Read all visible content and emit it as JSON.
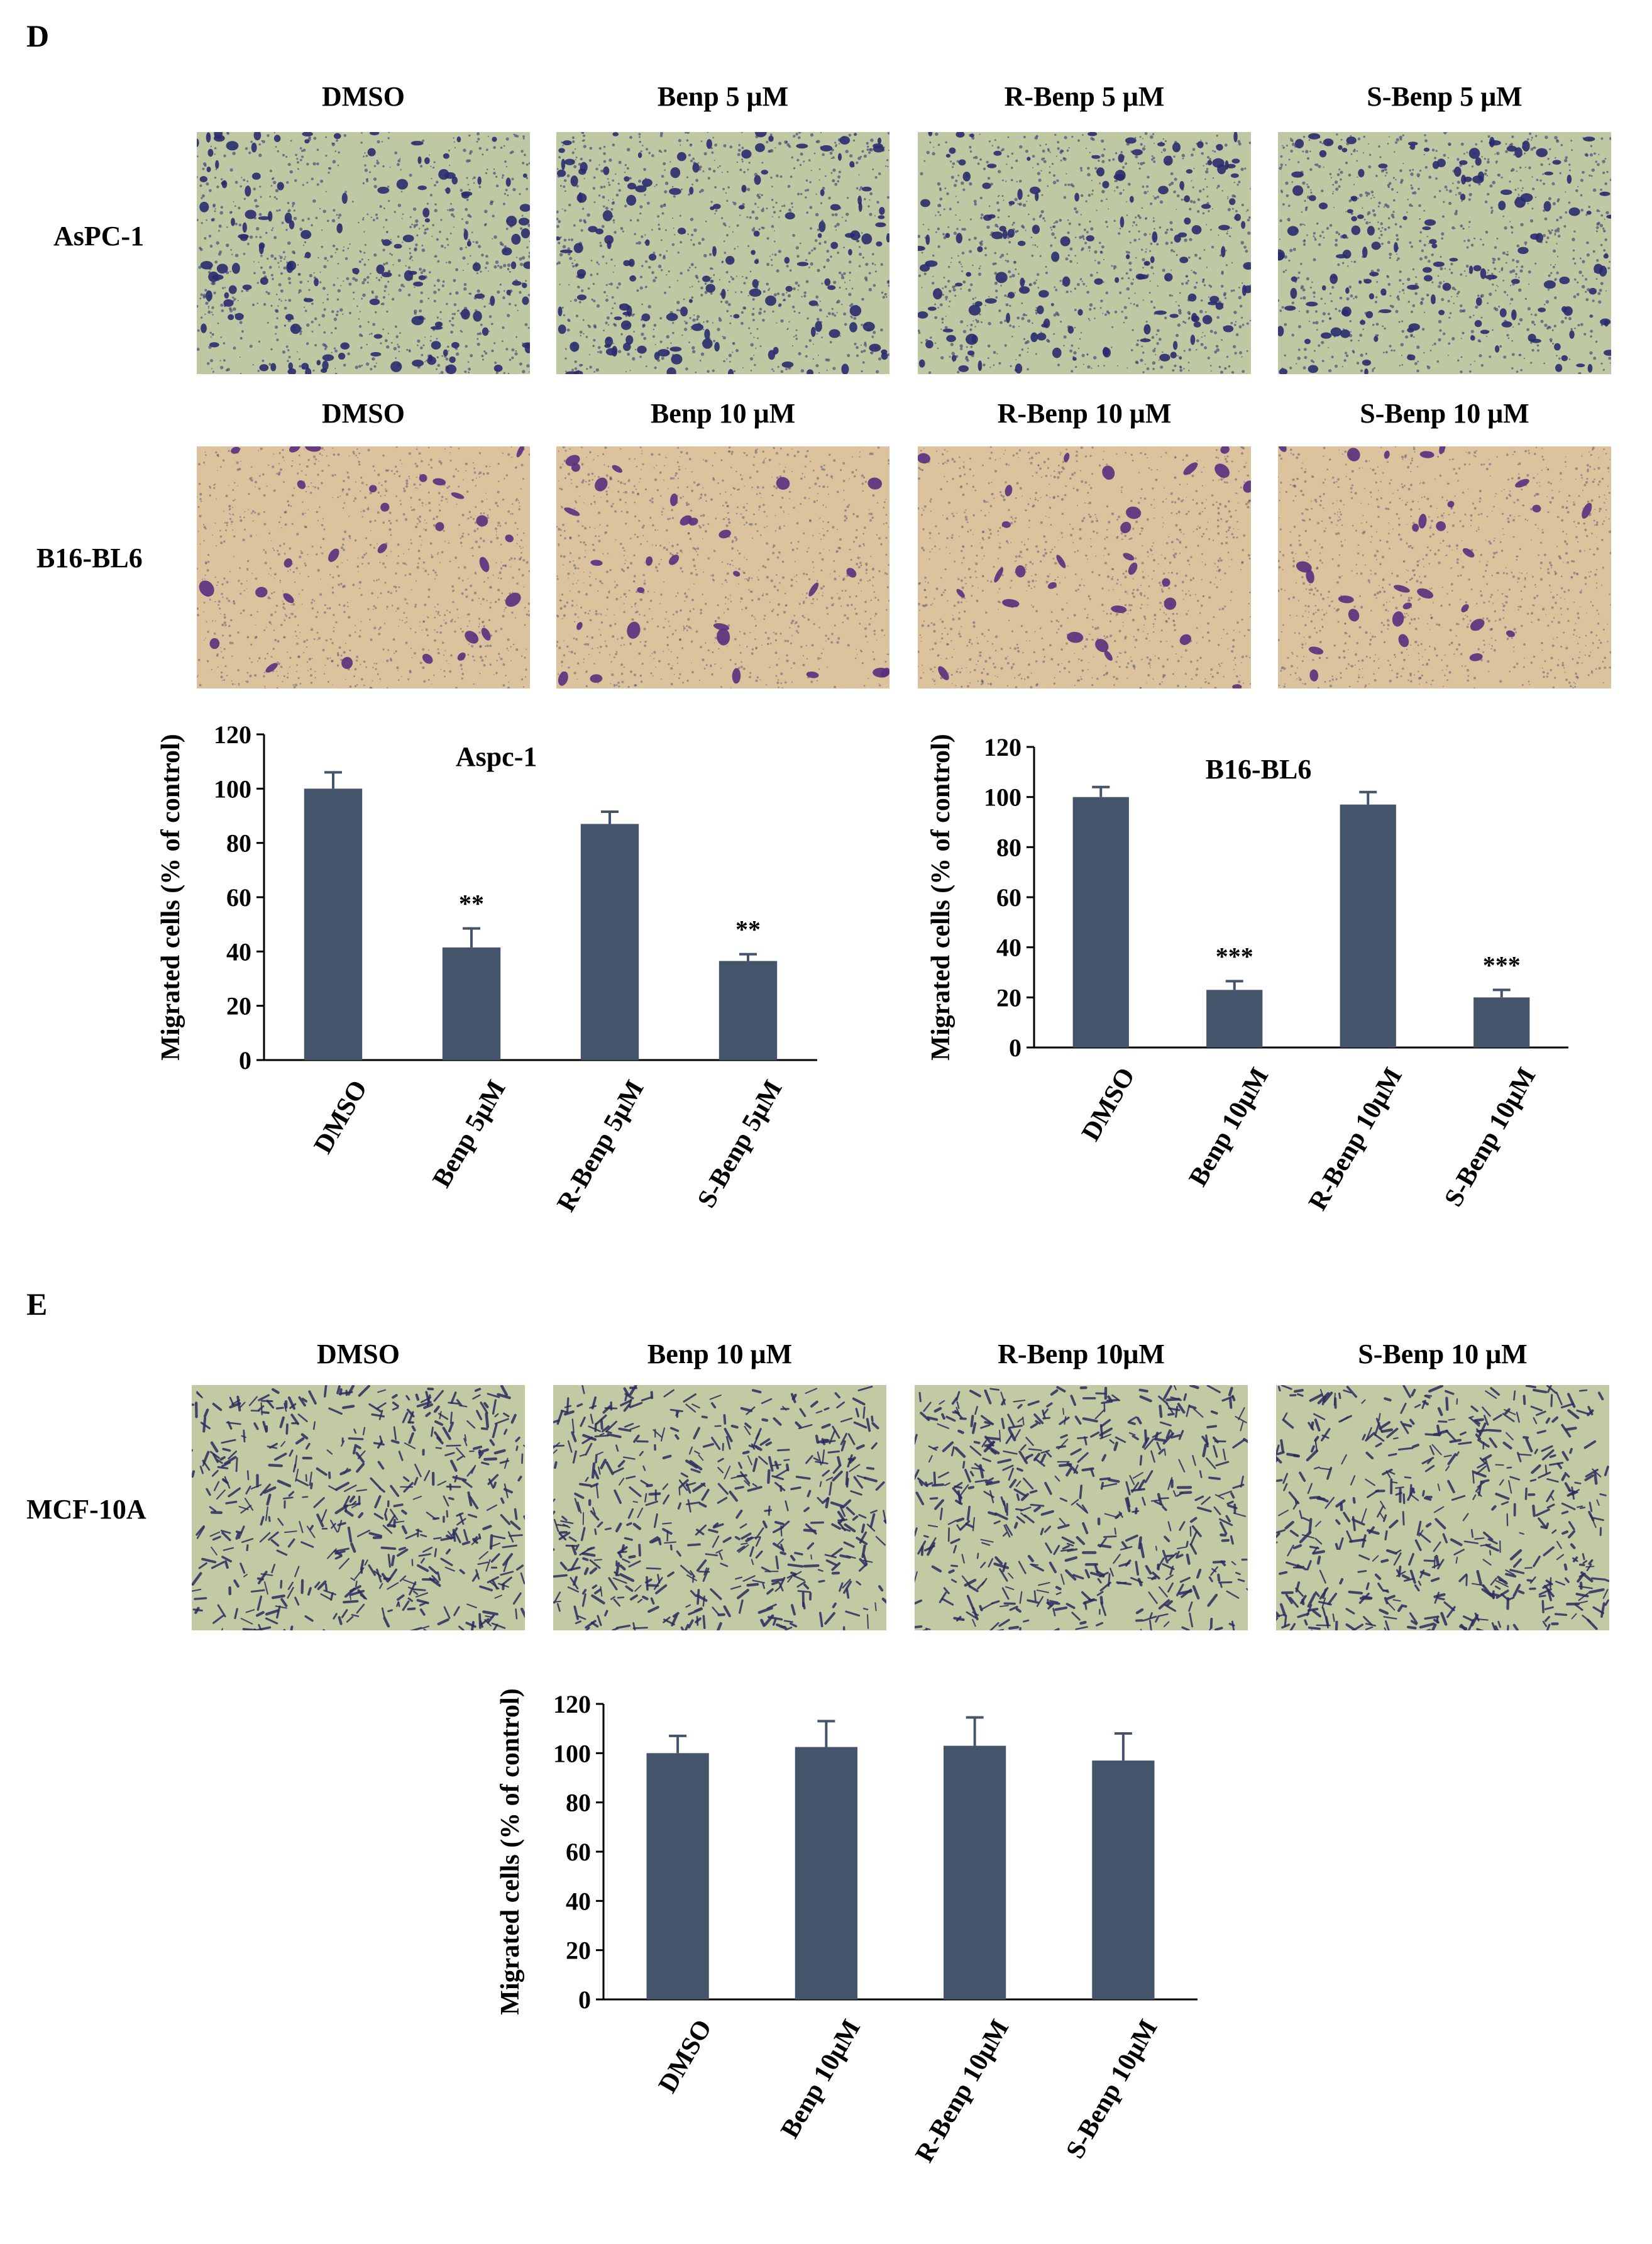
{
  "panels": {
    "D": {
      "letter": "D",
      "rows": [
        {
          "label": "AsPC-1",
          "titles": [
            "DMSO",
            "Benp 5 μM",
            "R-Benp 5 μM",
            "S-Benp 5 μM"
          ],
          "colors": {
            "background": "#bec9a3",
            "cells": "#2a2b6e"
          }
        },
        {
          "label": "B16-BL6",
          "titles": [
            "DMSO",
            "Benp 10 μM",
            "R-Benp 10 μM",
            "S-Benp 10 μM"
          ],
          "colors": {
            "background": "#dcc39e",
            "cells": "#5a2f7e"
          }
        }
      ]
    },
    "E": {
      "letter": "E",
      "rows": [
        {
          "label": "MCF-10A",
          "titles": [
            "DMSO",
            "Benp 10 μM",
            "R-Benp 10μM",
            "S-Benp 10 μM"
          ],
          "colors": {
            "background": "#c2caa3",
            "cells": "#2c2c5e"
          }
        }
      ]
    }
  },
  "chart_data": [
    {
      "type": "bar",
      "title": "Aspc-1",
      "ylabel": "Migrated cells (% of control)",
      "categories": [
        "DMSO",
        "Benp 5μM",
        "R-Benp 5μM",
        "S-Benp 5μM"
      ],
      "values": [
        100,
        41.5,
        87,
        36.5
      ],
      "errors": [
        6,
        7,
        4.5,
        2.5
      ],
      "annotations": [
        "",
        "**",
        "",
        "**"
      ],
      "ylim": [
        0,
        120
      ],
      "yticks": [
        "0",
        "20",
        "40",
        "60",
        "80",
        "100",
        "120"
      ],
      "bar_color": "#44546a"
    },
    {
      "type": "bar",
      "title": "B16-BL6",
      "ylabel": "Migrated cells (% of control)",
      "categories": [
        "DMSO",
        "Benp 10μM",
        "R-Benp 10μM",
        "S-Benp 10μM"
      ],
      "values": [
        100,
        23,
        97,
        20
      ],
      "errors": [
        4,
        3.5,
        5,
        3
      ],
      "annotations": [
        "",
        "***",
        "",
        "***"
      ],
      "ylim": [
        0,
        120
      ],
      "yticks": [
        "0",
        "20",
        "40",
        "60",
        "80",
        "100",
        "120"
      ],
      "bar_color": "#44546a"
    },
    {
      "type": "bar",
      "title": "",
      "ylabel": "Migrated cells (% of control)",
      "categories": [
        "DMSO",
        "Benp 10μM",
        "R-Benp 10μM",
        "S-Benp 10μM"
      ],
      "values": [
        100,
        102.5,
        103,
        97
      ],
      "errors": [
        7,
        10.5,
        11.5,
        11
      ],
      "annotations": [
        "",
        "",
        "",
        ""
      ],
      "ylim": [
        0,
        120
      ],
      "yticks": [
        "0",
        "20",
        "40",
        "60",
        "80",
        "100",
        "120"
      ],
      "bar_color": "#44546a"
    }
  ]
}
